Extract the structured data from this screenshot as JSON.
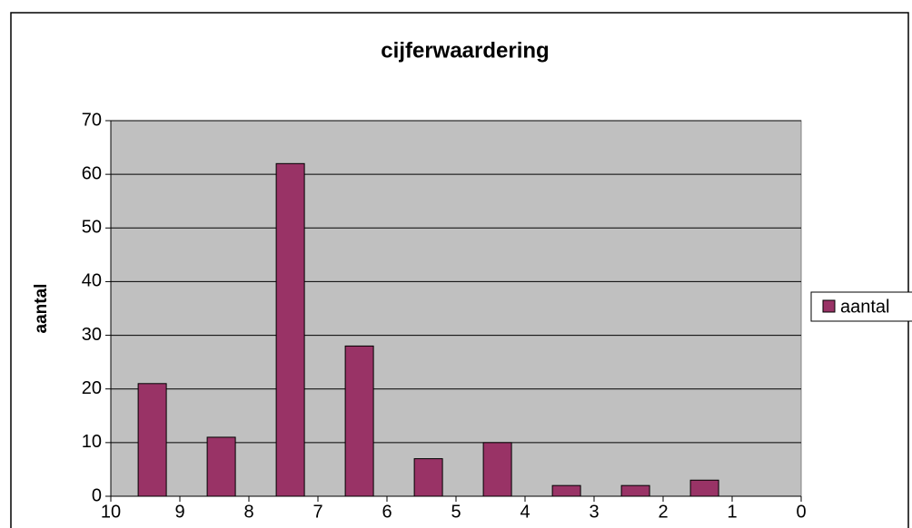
{
  "chart_data": {
    "type": "bar",
    "title": "cijferwaardering",
    "y_label": "aantal",
    "x": [
      9.4,
      8.4,
      7.4,
      6.4,
      5.4,
      4.4,
      3.4,
      2.4,
      1.4
    ],
    "series": [
      {
        "name": "aantal",
        "color": "#993366",
        "values": [
          21,
          11,
          62,
          28,
          7,
          10,
          2,
          2,
          3
        ]
      }
    ],
    "xlim": [
      10,
      0
    ],
    "xticks": [
      10,
      9,
      8,
      7,
      6,
      5,
      4,
      3,
      2,
      1,
      0
    ],
    "ylim": [
      0,
      70
    ],
    "yticks": [
      0,
      10,
      20,
      30,
      40,
      50,
      60,
      70
    ],
    "grid": true,
    "legend": "right"
  }
}
